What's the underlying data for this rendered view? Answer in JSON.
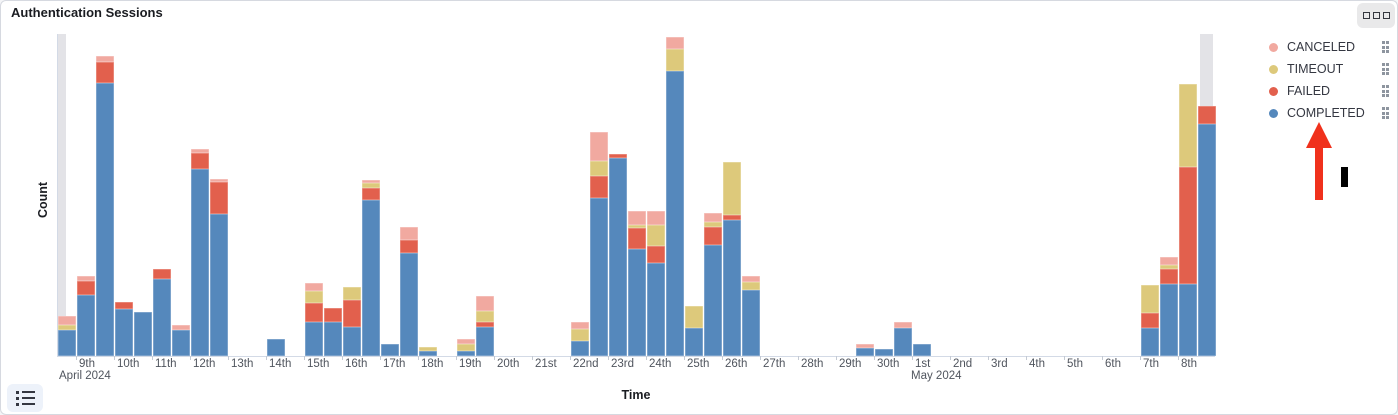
{
  "card": {
    "title": "Authentication Sessions"
  },
  "toolbar": {
    "panel_menu_icon": "three-squares-menu",
    "legend_toggle_icon": "list-icon"
  },
  "annotation": {
    "arrow": "red arrow pointing up at COMPLETED legend item",
    "arrow_color": "#f0311c",
    "cursor": "black I-bar marker right of arrow"
  },
  "chart_data": {
    "type": "bar",
    "stacked": true,
    "title": "Authentication Sessions",
    "xlabel": "Time",
    "ylabel": "Count",
    "bucket_interval": "12h",
    "x_range": "2024-04-08 12:00 to 2024-05-09 00:00",
    "y_axis_tick_labels_visible": false,
    "value_units": "relative counts (y axis shows no numeric ticks; values estimated proportionally, max stack = 319)",
    "grid": false,
    "legend_position": "right",
    "series_order_bottom_to_top": [
      "COMPLETED",
      "FAILED",
      "TIMEOUT",
      "CANCELED"
    ],
    "legend": [
      {
        "label": "CANCELED",
        "color": "#f1a9a0"
      },
      {
        "label": "TIMEOUT",
        "color": "#ddc97b"
      },
      {
        "label": "FAILED",
        "color": "#e2604d"
      },
      {
        "label": "COMPLETED",
        "color": "#5588bc"
      }
    ],
    "x_ticks": [
      "9th",
      "10th",
      "11th",
      "12th",
      "13th",
      "14th",
      "15th",
      "16th",
      "17th",
      "18th",
      "19th",
      "20th",
      "21st",
      "22nd",
      "23rd",
      "24th",
      "25th",
      "26th",
      "27th",
      "28th",
      "29th",
      "30th",
      "1st",
      "2nd",
      "3rd",
      "4th",
      "5th",
      "6th",
      "7th",
      "8th"
    ],
    "month_labels": [
      {
        "tick": "9th",
        "text": "April 2024"
      },
      {
        "tick": "1st",
        "text": "May 2024"
      }
    ],
    "partial_bucket_markers": "light gray full-height bands at left and right chart edges",
    "bars": [
      {
        "bucket": 0,
        "time": "Apr 8 PM",
        "COMPLETED": 26,
        "TIMEOUT": 5,
        "CANCELED": 9
      },
      {
        "bucket": 1,
        "time": "Apr 9 AM",
        "COMPLETED": 61,
        "FAILED": 14,
        "CANCELED": 5
      },
      {
        "bucket": 2,
        "time": "Apr 9 PM",
        "COMPLETED": 273,
        "FAILED": 21,
        "CANCELED": 6
      },
      {
        "bucket": 3,
        "time": "Apr 10 AM",
        "COMPLETED": 47,
        "FAILED": 7
      },
      {
        "bucket": 4,
        "time": "Apr 10 PM",
        "COMPLETED": 44
      },
      {
        "bucket": 5,
        "time": "Apr 11 AM",
        "COMPLETED": 77,
        "FAILED": 10
      },
      {
        "bucket": 6,
        "time": "Apr 11 PM",
        "COMPLETED": 26,
        "CANCELED": 5
      },
      {
        "bucket": 7,
        "time": "Apr 12 AM",
        "COMPLETED": 187,
        "FAILED": 16,
        "CANCELED": 4
      },
      {
        "bucket": 8,
        "time": "Apr 12 PM",
        "COMPLETED": 142,
        "FAILED": 32,
        "CANCELED": 3
      },
      {
        "bucket": 11,
        "time": "Apr 14 AM",
        "COMPLETED": 17
      },
      {
        "bucket": 13,
        "time": "Apr 15 AM",
        "COMPLETED": 34,
        "FAILED": 19,
        "TIMEOUT": 12,
        "CANCELED": 8
      },
      {
        "bucket": 14,
        "time": "Apr 15 PM",
        "COMPLETED": 34,
        "FAILED": 14
      },
      {
        "bucket": 15,
        "time": "Apr 16 AM",
        "COMPLETED": 29,
        "FAILED": 27,
        "TIMEOUT": 13
      },
      {
        "bucket": 16,
        "time": "Apr 16 PM",
        "COMPLETED": 156,
        "FAILED": 12,
        "TIMEOUT": 5,
        "CANCELED": 3
      },
      {
        "bucket": 17,
        "time": "Apr 17 AM",
        "COMPLETED": 12
      },
      {
        "bucket": 18,
        "time": "Apr 17 PM",
        "COMPLETED": 103,
        "FAILED": 13,
        "CANCELED": 13
      },
      {
        "bucket": 19,
        "time": "Apr 18 AM",
        "COMPLETED": 5,
        "TIMEOUT": 4
      },
      {
        "bucket": 21,
        "time": "Apr 19 AM",
        "COMPLETED": 5,
        "TIMEOUT": 7,
        "CANCELED": 5
      },
      {
        "bucket": 22,
        "time": "Apr 19 PM",
        "COMPLETED": 29,
        "FAILED": 5,
        "TIMEOUT": 11,
        "CANCELED": 15
      },
      {
        "bucket": 27,
        "time": "Apr 22 AM",
        "COMPLETED": 15,
        "TIMEOUT": 12,
        "CANCELED": 7
      },
      {
        "bucket": 28,
        "time": "Apr 22 PM",
        "COMPLETED": 158,
        "FAILED": 22,
        "TIMEOUT": 15,
        "CANCELED": 29
      },
      {
        "bucket": 29,
        "time": "Apr 23 AM",
        "COMPLETED": 198,
        "FAILED": 4
      },
      {
        "bucket": 30,
        "time": "Apr 23 PM",
        "COMPLETED": 107,
        "FAILED": 21,
        "TIMEOUT": 3,
        "CANCELED": 14
      },
      {
        "bucket": 31,
        "time": "Apr 24 AM",
        "COMPLETED": 93,
        "FAILED": 17,
        "TIMEOUT": 21,
        "CANCELED": 14
      },
      {
        "bucket": 32,
        "time": "Apr 24 PM",
        "COMPLETED": 285,
        "TIMEOUT": 22,
        "CANCELED": 12
      },
      {
        "bucket": 33,
        "time": "Apr 25 AM",
        "COMPLETED": 28,
        "TIMEOUT": 22
      },
      {
        "bucket": 34,
        "time": "Apr 25 PM",
        "COMPLETED": 111,
        "FAILED": 18,
        "TIMEOUT": 5,
        "CANCELED": 9
      },
      {
        "bucket": 35,
        "time": "Apr 26 AM",
        "COMPLETED": 136,
        "FAILED": 5,
        "TIMEOUT": 53
      },
      {
        "bucket": 36,
        "time": "Apr 26 PM",
        "COMPLETED": 66,
        "TIMEOUT": 8,
        "CANCELED": 6
      },
      {
        "bucket": 42,
        "time": "Apr 29 PM",
        "COMPLETED": 8,
        "CANCELED": 4
      },
      {
        "bucket": 43,
        "time": "Apr 30 AM",
        "COMPLETED": 7
      },
      {
        "bucket": 44,
        "time": "Apr 30 PM",
        "COMPLETED": 28,
        "CANCELED": 6
      },
      {
        "bucket": 45,
        "time": "May 1 AM",
        "COMPLETED": 12
      },
      {
        "bucket": 57,
        "time": "May 7 AM",
        "COMPLETED": 28,
        "FAILED": 15,
        "TIMEOUT": 28
      },
      {
        "bucket": 58,
        "time": "May 7 PM",
        "COMPLETED": 72,
        "FAILED": 15,
        "TIMEOUT": 4,
        "CANCELED": 8
      },
      {
        "bucket": 59,
        "time": "May 8 AM",
        "COMPLETED": 72,
        "FAILED": 117,
        "TIMEOUT": 83
      },
      {
        "bucket": 60,
        "time": "May 8 PM",
        "COMPLETED": 232,
        "FAILED": 18
      }
    ]
  }
}
